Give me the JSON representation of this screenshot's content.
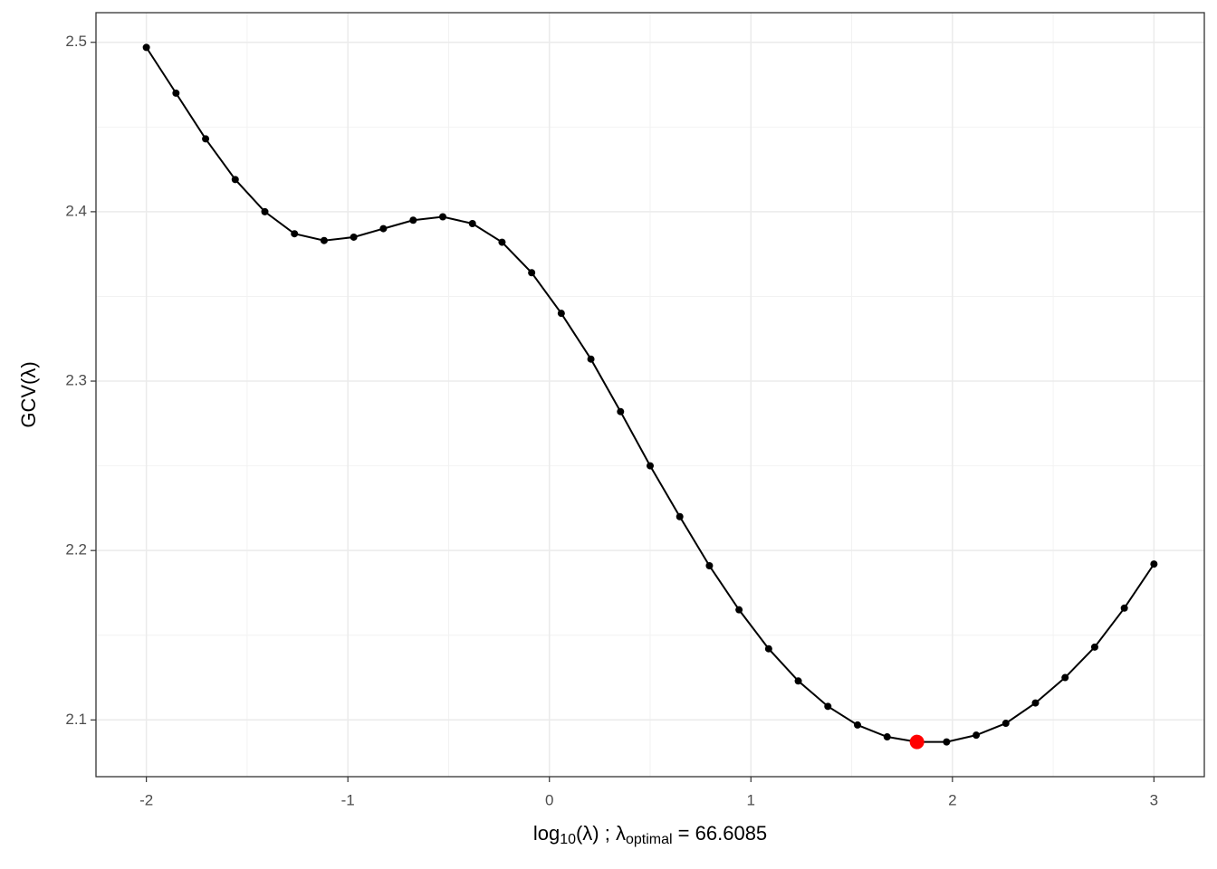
{
  "chart_data": {
    "type": "line",
    "ylabel": "GCV(λ)",
    "xlabel": [
      {
        "text": "log"
      },
      {
        "text": "10",
        "sub": true
      },
      {
        "text": "(λ) ;   λ"
      },
      {
        "text": "optimal",
        "sub": true
      },
      {
        "text": " = 66.6085"
      }
    ],
    "series": [
      {
        "color": "#000000",
        "x": [
          -2,
          -1.853,
          -1.706,
          -1.559,
          -1.412,
          -1.265,
          -1.118,
          -0.971,
          -0.824,
          -0.676,
          -0.529,
          -0.382,
          -0.235,
          -0.088,
          0.059,
          0.206,
          0.353,
          0.5,
          0.647,
          0.794,
          0.941,
          1.088,
          1.235,
          1.382,
          1.529,
          1.676,
          1.824,
          1.971,
          2.118,
          2.265,
          2.412,
          2.559,
          2.706,
          2.853,
          3
        ],
        "values": [
          2.497,
          2.47,
          2.443,
          2.419,
          2.4,
          2.387,
          2.383,
          2.385,
          2.39,
          2.395,
          2.397,
          2.393,
          2.382,
          2.364,
          2.34,
          2.313,
          2.282,
          2.25,
          2.22,
          2.191,
          2.165,
          2.142,
          2.123,
          2.108,
          2.097,
          2.09,
          2.087,
          2.087,
          2.091,
          2.098,
          2.11,
          2.125,
          2.143,
          2.166,
          2.192
        ]
      }
    ],
    "highlight": {
      "x": 1.824,
      "y": 2.087,
      "color": "#ff0000"
    },
    "xlim": [
      -2.25,
      3.25
    ],
    "xticks": [
      -2,
      -1,
      0,
      1,
      2,
      3
    ],
    "ylim": [
      2.0665,
      2.5175
    ],
    "yticks": [
      2.1,
      2.2,
      2.3,
      2.4,
      2.5
    ],
    "x_minor_grid": [
      -1.5,
      -0.5,
      0.5,
      1.5,
      2.5
    ],
    "y_minor_grid": [
      2.15,
      2.25,
      2.35,
      2.45
    ],
    "grid": true
  }
}
